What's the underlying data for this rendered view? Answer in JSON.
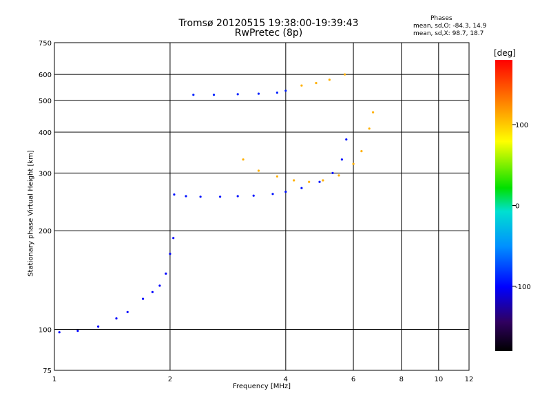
{
  "chart_data": {
    "type": "scatter",
    "title": "Tromsø 20120515 19:38:00-19:39:43",
    "subtitle": "RwPretec (8p)",
    "xlabel": "Frequency [MHz]",
    "ylabel": "Stationary phase Virtual Height [km]",
    "x_scale": "log",
    "y_scale": "log",
    "xlim": [
      1,
      12
    ],
    "ylim": [
      75,
      750
    ],
    "x_ticks": [
      1,
      2,
      4,
      6,
      8,
      10,
      12
    ],
    "y_ticks": [
      75,
      100,
      200,
      300,
      400,
      500,
      600,
      750
    ],
    "grid": true,
    "phase_stats": {
      "title": "Phases",
      "o_mode": "mean, sd,O:  -84.3,  14.9",
      "x_mode": "mean, sd,X:   98.7,  18.7"
    },
    "colorbar": {
      "label": "[deg]",
      "range": [
        -180,
        180
      ],
      "ticks": [
        "100",
        "0",
        "-100"
      ],
      "tick_values": [
        100,
        0,
        -100
      ]
    },
    "traces": [
      {
        "name": "",
        "phase": -100,
        "points": [
          [
            1.03,
            98
          ],
          [
            1.15,
            99
          ],
          [
            1.3,
            102
          ],
          [
            1.45,
            108
          ],
          [
            1.55,
            113
          ],
          [
            1.7,
            124
          ],
          [
            1.8,
            130
          ],
          [
            1.88,
            136
          ],
          [
            1.95,
            148
          ],
          [
            2.0,
            170
          ],
          [
            2.04,
            190
          ]
        ]
      },
      {
        "name": "",
        "phase": -95,
        "points": [
          [
            2.05,
            258
          ],
          [
            2.2,
            255
          ],
          [
            2.4,
            254
          ],
          [
            2.7,
            254
          ],
          [
            3.0,
            255
          ],
          [
            3.3,
            256
          ],
          [
            3.7,
            259
          ],
          [
            4.0,
            263
          ],
          [
            4.4,
            270
          ],
          [
            4.9,
            282
          ],
          [
            5.3,
            300
          ],
          [
            5.6,
            330
          ],
          [
            5.75,
            380
          ]
        ]
      },
      {
        "name": "",
        "phase": -90,
        "points": [
          [
            2.3,
            520
          ],
          [
            2.6,
            520
          ],
          [
            3.0,
            522
          ],
          [
            3.4,
            524
          ],
          [
            3.8,
            528
          ],
          [
            4.0,
            535
          ]
        ]
      },
      {
        "name": "",
        "phase": 110,
        "points": [
          [
            3.1,
            330
          ],
          [
            3.4,
            305
          ],
          [
            3.8,
            293
          ],
          [
            4.2,
            285
          ],
          [
            4.6,
            282
          ],
          [
            5.0,
            285
          ],
          [
            5.5,
            295
          ],
          [
            6.0,
            320
          ],
          [
            6.3,
            350
          ],
          [
            6.6,
            410
          ],
          [
            6.75,
            460
          ]
        ]
      },
      {
        "name": "",
        "phase": 110,
        "points": [
          [
            4.4,
            555
          ],
          [
            4.8,
            565
          ],
          [
            5.2,
            578
          ],
          [
            5.7,
            600
          ]
        ]
      }
    ]
  }
}
